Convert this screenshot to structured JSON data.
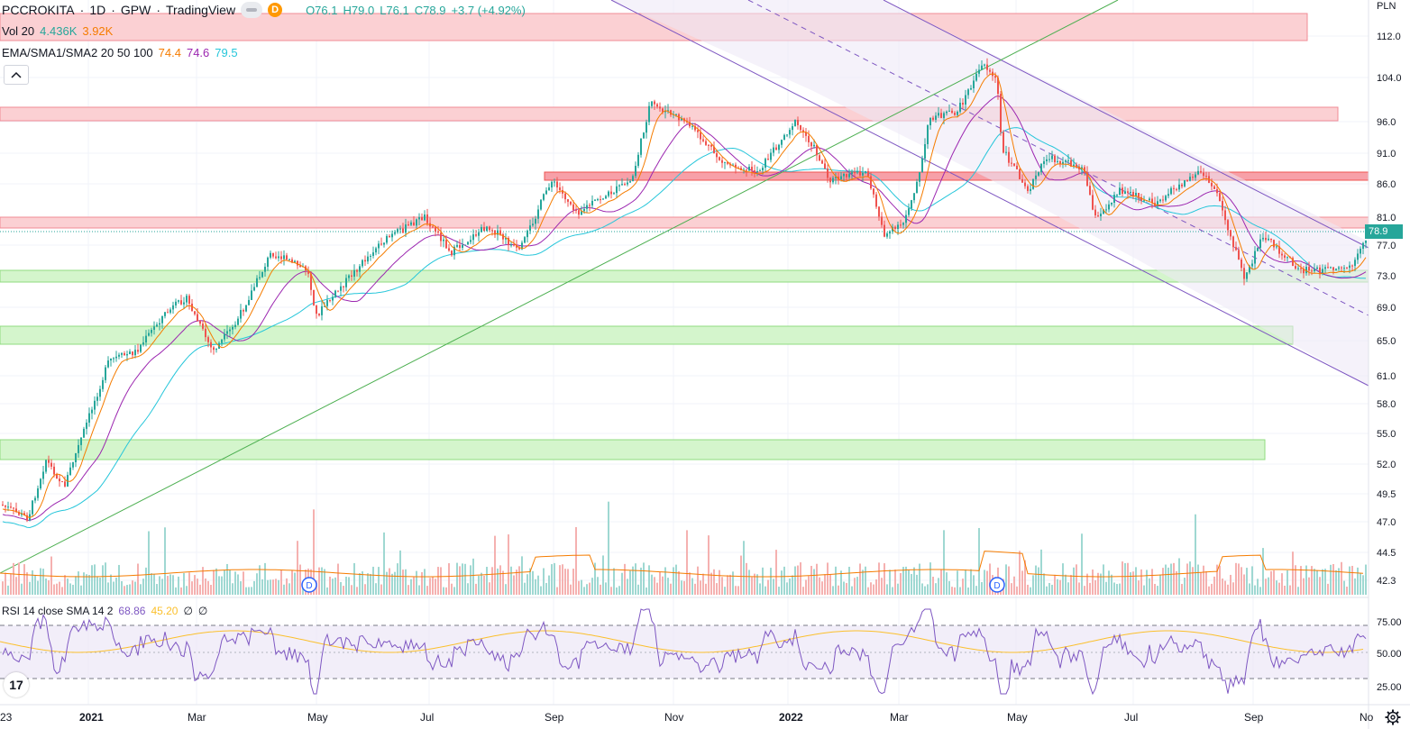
{
  "header": {
    "symbol": "PCCROKITA",
    "interval": "1D",
    "exchange": "GPW",
    "provider": "TradingView",
    "dividend_badge": "D",
    "ohlc": {
      "o": "O76.1",
      "h": "H79.0",
      "l": "L76.1",
      "c": "C78.9",
      "chg": "+3.7 (+4.92%)"
    },
    "colors": {
      "ohlc": "#26a69a"
    }
  },
  "volume_legend": {
    "name": "Vol 20",
    "v1": "4.436K",
    "v2": "3.92K",
    "c1": "#26a69a",
    "c2": "#f57c00"
  },
  "ma_legend": {
    "name": "EMA/SMA1/SMA2 20 50 100",
    "v1": "74.4",
    "v2": "74.6",
    "v3": "79.5",
    "c1": "#f57c00",
    "c2": "#9c27b0",
    "c3": "#26c6da"
  },
  "rsi_legend": {
    "name": "RSI 14 close SMA 14 2",
    "v1": "68.86",
    "v2": "45.20",
    "v3": "∅",
    "v4": "∅",
    "c1": "#7e57c2",
    "c2": "#fbc02d"
  },
  "price_axis": {
    "currency": "PLN",
    "ticks": [
      "112.0",
      "104.0",
      "96.0",
      "91.0",
      "86.0",
      "81.0",
      "77.0",
      "73.0",
      "69.0",
      "65.0",
      "61.0",
      "58.0",
      "55.0",
      "52.0",
      "49.5",
      "47.0",
      "44.5",
      "42.3"
    ],
    "last_price": "78.9",
    "last_color": "#26a69a"
  },
  "rsi_axis": {
    "ticks": [
      "75.00",
      "50.00",
      "25.00"
    ]
  },
  "time_axis": {
    "labels": [
      "23",
      "2021",
      "Mar",
      "May",
      "Jul",
      "Sep",
      "Nov",
      "2022",
      "Mar",
      "May",
      "Jul",
      "Sep",
      "No"
    ]
  },
  "dividend_markers": [
    "D",
    "D"
  ],
  "logo_text": "17",
  "icons": {
    "eye": "eye-icon",
    "collapse": "chevron-up-icon",
    "settings": "gear-icon"
  },
  "colors": {
    "up": "#26a69a",
    "down": "#ef5350",
    "resistance_zone": "#f8c8cc",
    "support_zone": "#c8f0c0",
    "channel": "#7e57c2",
    "trendline": "#4caf50"
  }
}
